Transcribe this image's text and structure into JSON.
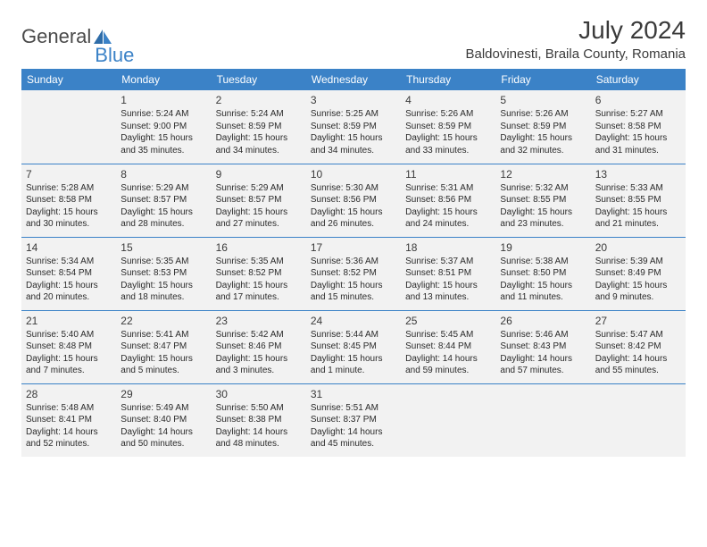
{
  "logo": {
    "part1": "General",
    "part2": "Blue"
  },
  "title": "July 2024",
  "location": "Baldovinesti, Braila County, Romania",
  "colors": {
    "header_bg": "#3b82c7",
    "header_text": "#ffffff",
    "row_bg": "#f2f2f2",
    "divider": "#3b82c7",
    "body_text": "#2a2a2a",
    "title_text": "#3a3a3a",
    "logo_gray": "#4a4a4a",
    "logo_blue": "#3b82c7"
  },
  "daysOfWeek": [
    "Sunday",
    "Monday",
    "Tuesday",
    "Wednesday",
    "Thursday",
    "Friday",
    "Saturday"
  ],
  "weeks": [
    [
      null,
      {
        "n": "1",
        "sr": "5:24 AM",
        "ss": "9:00 PM",
        "dl": "15 hours and 35 minutes."
      },
      {
        "n": "2",
        "sr": "5:24 AM",
        "ss": "8:59 PM",
        "dl": "15 hours and 34 minutes."
      },
      {
        "n": "3",
        "sr": "5:25 AM",
        "ss": "8:59 PM",
        "dl": "15 hours and 34 minutes."
      },
      {
        "n": "4",
        "sr": "5:26 AM",
        "ss": "8:59 PM",
        "dl": "15 hours and 33 minutes."
      },
      {
        "n": "5",
        "sr": "5:26 AM",
        "ss": "8:59 PM",
        "dl": "15 hours and 32 minutes."
      },
      {
        "n": "6",
        "sr": "5:27 AM",
        "ss": "8:58 PM",
        "dl": "15 hours and 31 minutes."
      }
    ],
    [
      {
        "n": "7",
        "sr": "5:28 AM",
        "ss": "8:58 PM",
        "dl": "15 hours and 30 minutes."
      },
      {
        "n": "8",
        "sr": "5:29 AM",
        "ss": "8:57 PM",
        "dl": "15 hours and 28 minutes."
      },
      {
        "n": "9",
        "sr": "5:29 AM",
        "ss": "8:57 PM",
        "dl": "15 hours and 27 minutes."
      },
      {
        "n": "10",
        "sr": "5:30 AM",
        "ss": "8:56 PM",
        "dl": "15 hours and 26 minutes."
      },
      {
        "n": "11",
        "sr": "5:31 AM",
        "ss": "8:56 PM",
        "dl": "15 hours and 24 minutes."
      },
      {
        "n": "12",
        "sr": "5:32 AM",
        "ss": "8:55 PM",
        "dl": "15 hours and 23 minutes."
      },
      {
        "n": "13",
        "sr": "5:33 AM",
        "ss": "8:55 PM",
        "dl": "15 hours and 21 minutes."
      }
    ],
    [
      {
        "n": "14",
        "sr": "5:34 AM",
        "ss": "8:54 PM",
        "dl": "15 hours and 20 minutes."
      },
      {
        "n": "15",
        "sr": "5:35 AM",
        "ss": "8:53 PM",
        "dl": "15 hours and 18 minutes."
      },
      {
        "n": "16",
        "sr": "5:35 AM",
        "ss": "8:52 PM",
        "dl": "15 hours and 17 minutes."
      },
      {
        "n": "17",
        "sr": "5:36 AM",
        "ss": "8:52 PM",
        "dl": "15 hours and 15 minutes."
      },
      {
        "n": "18",
        "sr": "5:37 AM",
        "ss": "8:51 PM",
        "dl": "15 hours and 13 minutes."
      },
      {
        "n": "19",
        "sr": "5:38 AM",
        "ss": "8:50 PM",
        "dl": "15 hours and 11 minutes."
      },
      {
        "n": "20",
        "sr": "5:39 AM",
        "ss": "8:49 PM",
        "dl": "15 hours and 9 minutes."
      }
    ],
    [
      {
        "n": "21",
        "sr": "5:40 AM",
        "ss": "8:48 PM",
        "dl": "15 hours and 7 minutes."
      },
      {
        "n": "22",
        "sr": "5:41 AM",
        "ss": "8:47 PM",
        "dl": "15 hours and 5 minutes."
      },
      {
        "n": "23",
        "sr": "5:42 AM",
        "ss": "8:46 PM",
        "dl": "15 hours and 3 minutes."
      },
      {
        "n": "24",
        "sr": "5:44 AM",
        "ss": "8:45 PM",
        "dl": "15 hours and 1 minute."
      },
      {
        "n": "25",
        "sr": "5:45 AM",
        "ss": "8:44 PM",
        "dl": "14 hours and 59 minutes."
      },
      {
        "n": "26",
        "sr": "5:46 AM",
        "ss": "8:43 PM",
        "dl": "14 hours and 57 minutes."
      },
      {
        "n": "27",
        "sr": "5:47 AM",
        "ss": "8:42 PM",
        "dl": "14 hours and 55 minutes."
      }
    ],
    [
      {
        "n": "28",
        "sr": "5:48 AM",
        "ss": "8:41 PM",
        "dl": "14 hours and 52 minutes."
      },
      {
        "n": "29",
        "sr": "5:49 AM",
        "ss": "8:40 PM",
        "dl": "14 hours and 50 minutes."
      },
      {
        "n": "30",
        "sr": "5:50 AM",
        "ss": "8:38 PM",
        "dl": "14 hours and 48 minutes."
      },
      {
        "n": "31",
        "sr": "5:51 AM",
        "ss": "8:37 PM",
        "dl": "14 hours and 45 minutes."
      },
      null,
      null,
      null
    ]
  ],
  "labels": {
    "sunrise": "Sunrise:",
    "sunset": "Sunset:",
    "daylight": "Daylight:"
  }
}
